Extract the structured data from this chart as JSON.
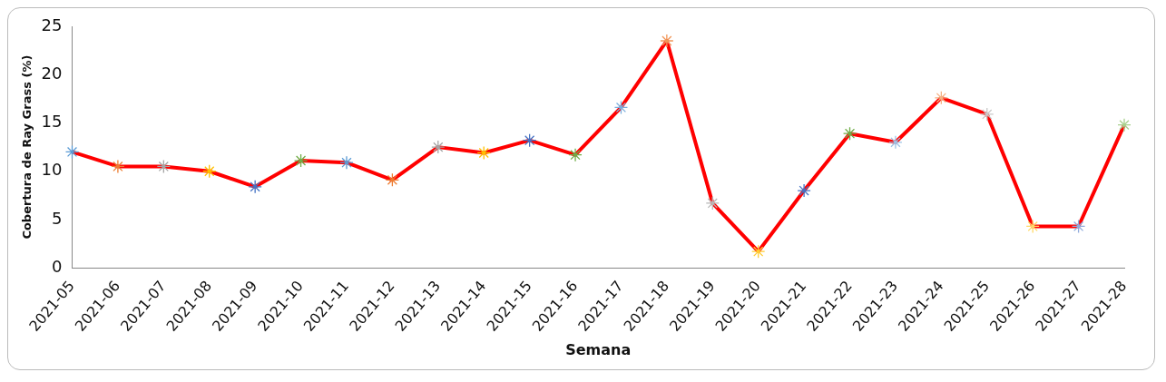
{
  "chart_data": {
    "type": "line",
    "xlabel": "Semana",
    "ylabel": "Cobertura de Ray Grass (%)",
    "categories": [
      "2021-05",
      "2021-06",
      "2021-07",
      "2021-08",
      "2021-09",
      "2021-10",
      "2021-11",
      "2021-12",
      "2021-13",
      "2021-14",
      "2021-15",
      "2021-16",
      "2021-17",
      "2021-18",
      "2021-19",
      "2021-20",
      "2021-21",
      "2021-22",
      "2021-23",
      "2021-24",
      "2021-25",
      "2021-26",
      "2021-27",
      "2021-28"
    ],
    "series": [
      {
        "color": "#ff0000",
        "values": [
          12,
          10.5,
          10.5,
          10,
          8.4,
          11.1,
          10.9,
          9.1,
          12.5,
          11.9,
          13.2,
          11.7,
          16.6,
          23.5,
          6.7,
          1.7,
          8,
          13.9,
          13,
          17.6,
          15.9,
          4.3,
          4.3,
          14.8
        ],
        "colors": [
          "#5b9bd5",
          "#ed7d31",
          "#a5a5a5",
          "#ffc000",
          "#4472c4",
          "#70ad47",
          "#5b9bd5",
          "#ed7d31",
          "#a5a5a5",
          "#ffc000",
          "#4472c4",
          "#70ad47",
          "#7cafdd",
          "#f1975a",
          "#b7b7b7",
          "#ffcd33",
          "#4472c4",
          "#70ad47",
          "#9dc3e6",
          "#f4b183",
          "#c9c9c9",
          "#ffd966",
          "#8faadc",
          "#a9d18e"
        ]
      }
    ],
    "ylim": [
      0,
      25
    ],
    "yticks": [
      0,
      5,
      10,
      15,
      20,
      25
    ],
    "grid": false,
    "legend": false,
    "marker": "cross",
    "line_style": "solid"
  }
}
